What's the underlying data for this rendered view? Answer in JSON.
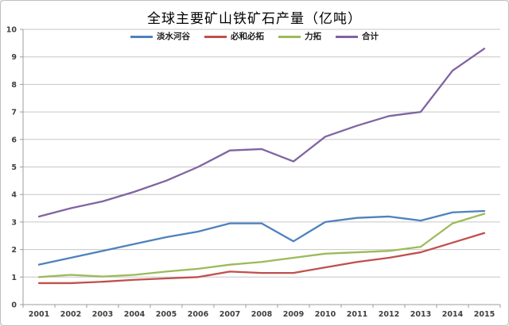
{
  "chart_data": {
    "type": "line",
    "title": "全球主要矿山铁矿石产量（亿吨）",
    "x_labels": [
      "2001",
      "2002",
      "2003",
      "2004",
      "2005",
      "2006",
      "2007",
      "2008",
      "2009",
      "2010",
      "2011",
      "2012",
      "2013",
      "2014",
      "2015"
    ],
    "series": [
      {
        "name": "淡水河谷",
        "color": "#4F81BD",
        "values": [
          1.45,
          1.7,
          1.95,
          2.2,
          2.45,
          2.65,
          2.95,
          2.95,
          2.3,
          3.0,
          3.15,
          3.2,
          3.05,
          3.35,
          3.4
        ]
      },
      {
        "name": "必和必拓",
        "color": "#C0504D",
        "values": [
          0.78,
          0.78,
          0.83,
          0.9,
          0.95,
          1.0,
          1.2,
          1.15,
          1.15,
          1.35,
          1.55,
          1.7,
          1.9,
          2.25,
          2.6
        ]
      },
      {
        "name": "力拓",
        "color": "#9BBB59",
        "values": [
          1.0,
          1.08,
          1.02,
          1.08,
          1.2,
          1.3,
          1.45,
          1.55,
          1.7,
          1.85,
          1.9,
          1.95,
          2.1,
          2.95,
          3.3
        ]
      },
      {
        "name": "合计",
        "color": "#8064A2",
        "values": [
          3.2,
          3.5,
          3.75,
          4.1,
          4.5,
          5.0,
          5.6,
          5.65,
          5.2,
          6.1,
          6.5,
          6.85,
          7.0,
          8.5,
          9.3
        ]
      }
    ],
    "ylim": [
      0,
      10
    ],
    "y_tick_step": 1,
    "grid": true,
    "legend_position": "top-center",
    "gridline_color": "#C6C6C6",
    "axis_color": "#9C9C9C",
    "tick_label_color": "#404040",
    "background_color": "#FFFFFF"
  }
}
